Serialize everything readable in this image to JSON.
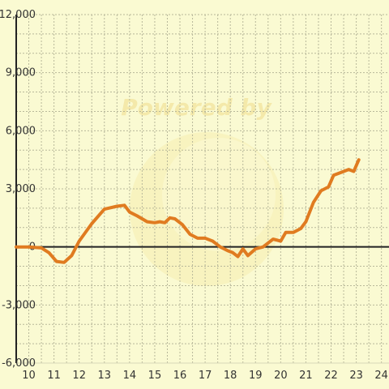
{
  "watermark": {
    "text": "Powered by"
  },
  "colors": {
    "background": "#fafad2",
    "line": "#e07b20",
    "grid": "#b8b89a",
    "axis": "#222222"
  },
  "chart_data": {
    "type": "line",
    "title": "",
    "xlabel": "",
    "ylabel": "",
    "xlim": [
      9.5,
      24.3
    ],
    "ylim": [
      -6000,
      12000
    ],
    "x_ticks": [
      10,
      11,
      12,
      13,
      14,
      15,
      16,
      17,
      18,
      19,
      20,
      21,
      22,
      23,
      24
    ],
    "x_tick_labels": [
      "10",
      "11",
      "12",
      "13",
      "14",
      "15",
      "16",
      "17",
      "18",
      "19",
      "20",
      "21",
      "22",
      "23",
      "24"
    ],
    "x_minor_ticks": [
      10.5,
      11.5,
      12.5,
      13.5,
      14.5,
      15.5,
      16.5,
      17.5,
      18.5,
      19.5,
      20.5,
      21.5,
      22.5,
      23.5
    ],
    "y_ticks": [
      -6000,
      -3000,
      0,
      3000,
      6000,
      9000,
      12000
    ],
    "y_tick_labels": [
      "-6,000",
      "-3,000",
      "0",
      "3,000",
      "6,000",
      "9,000",
      "12,000"
    ],
    "y_minor_ticks": [
      -5000,
      -4000,
      -2000,
      -1000,
      1000,
      2000,
      4000,
      5000,
      7000,
      8000,
      10000,
      11000
    ],
    "grid": true,
    "series": [
      {
        "color": "#e07b20",
        "points": [
          [
            9.5,
            0
          ],
          [
            10.0,
            0
          ],
          [
            10.5,
            -50
          ],
          [
            10.8,
            -300
          ],
          [
            11.1,
            -750
          ],
          [
            11.4,
            -800
          ],
          [
            11.7,
            -450
          ],
          [
            12.0,
            300
          ],
          [
            12.5,
            1200
          ],
          [
            13.0,
            1950
          ],
          [
            13.5,
            2100
          ],
          [
            13.8,
            2150
          ],
          [
            14.0,
            1800
          ],
          [
            14.3,
            1600
          ],
          [
            14.7,
            1300
          ],
          [
            15.0,
            1250
          ],
          [
            15.2,
            1300
          ],
          [
            15.4,
            1250
          ],
          [
            15.6,
            1500
          ],
          [
            15.8,
            1450
          ],
          [
            16.1,
            1150
          ],
          [
            16.4,
            650
          ],
          [
            16.7,
            450
          ],
          [
            17.0,
            450
          ],
          [
            17.3,
            300
          ],
          [
            17.6,
            0
          ],
          [
            17.9,
            -200
          ],
          [
            18.1,
            -300
          ],
          [
            18.3,
            -500
          ],
          [
            18.5,
            -100
          ],
          [
            18.7,
            -450
          ],
          [
            19.0,
            -100
          ],
          [
            19.3,
            0
          ],
          [
            19.7,
            400
          ],
          [
            20.0,
            300
          ],
          [
            20.2,
            750
          ],
          [
            20.5,
            750
          ],
          [
            20.8,
            950
          ],
          [
            21.0,
            1300
          ],
          [
            21.3,
            2300
          ],
          [
            21.6,
            2900
          ],
          [
            21.9,
            3100
          ],
          [
            22.1,
            3700
          ],
          [
            22.4,
            3850
          ],
          [
            22.7,
            4000
          ],
          [
            22.9,
            3900
          ],
          [
            23.1,
            4500
          ]
        ]
      }
    ]
  }
}
